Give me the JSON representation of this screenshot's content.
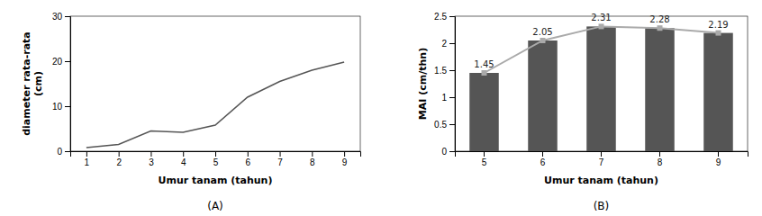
{
  "chart_data": [
    {
      "type": "line",
      "title": "(A)",
      "x": [
        1,
        2,
        3,
        4,
        5,
        6,
        7,
        8,
        9
      ],
      "values": [
        0.8,
        1.5,
        4.5,
        4.2,
        5.8,
        12.0,
        15.5,
        18.0,
        19.8
      ],
      "color": "#555555",
      "xlabel": "Umur tanam (tahun)",
      "ylabel": "diameter rata-rata\n(cm)",
      "xlim": [
        0.5,
        9.5
      ],
      "xticks": [
        1,
        2,
        3,
        4,
        5,
        6,
        7,
        8,
        9
      ],
      "ylim": [
        0,
        30
      ],
      "yticks": [
        0,
        10,
        20,
        30
      ],
      "grid": false
    },
    {
      "type": "bar",
      "title": "(B)",
      "categories": [
        "5",
        "6",
        "7",
        "8",
        "9"
      ],
      "series": [
        {
          "type": "bar",
          "color": "#555555",
          "values": [
            1.45,
            2.05,
            2.31,
            2.28,
            2.19
          ]
        },
        {
          "type": "line",
          "color": "#aaaaaa",
          "marker": "square",
          "data_labels": true,
          "values": [
            1.45,
            2.05,
            2.31,
            2.28,
            2.19
          ]
        }
      ],
      "xlabel": "Umur tanam (tahun)",
      "ylabel": "MAI (cm/thn)",
      "ylim": [
        0,
        2.5
      ],
      "yticks": [
        0,
        0.5,
        1,
        1.5,
        2,
        2.5
      ],
      "grid": false
    }
  ]
}
